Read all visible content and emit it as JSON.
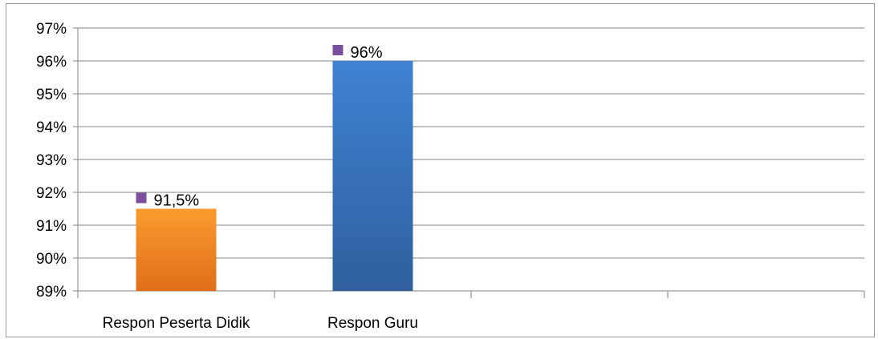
{
  "chart_data": {
    "type": "bar",
    "categories": [
      "Respon Peserta Didik",
      "Respon Guru",
      "",
      ""
    ],
    "values": [
      91.5,
      96,
      null,
      null
    ],
    "data_labels": [
      "91,5%",
      "96%",
      "",
      ""
    ],
    "y_ticks": [
      "89%",
      "90%",
      "91%",
      "92%",
      "93%",
      "94%",
      "95%",
      "96%",
      "97%"
    ],
    "ylim": [
      89,
      97
    ],
    "grid": true,
    "legend": "none",
    "bar_colors": [
      "#f7901e",
      "#3a7ccc"
    ],
    "label_marker_color": "#7b4f9e",
    "gridline_color": "#868686"
  }
}
